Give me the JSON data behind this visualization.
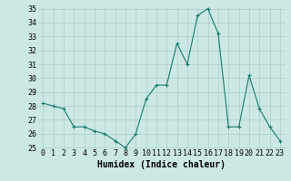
{
  "x": [
    0,
    1,
    2,
    3,
    4,
    5,
    6,
    7,
    8,
    9,
    10,
    11,
    12,
    13,
    14,
    15,
    16,
    17,
    18,
    19,
    20,
    21,
    22,
    23
  ],
  "y": [
    28.2,
    28.0,
    27.8,
    26.5,
    26.5,
    26.2,
    26.0,
    25.5,
    25.0,
    26.0,
    28.5,
    29.5,
    29.5,
    32.5,
    31.0,
    34.5,
    35.0,
    33.2,
    26.5,
    26.5,
    30.2,
    27.8,
    26.5,
    25.5
  ],
  "xlabel": "Humidex (Indice chaleur)",
  "ylim": [
    25,
    35
  ],
  "xlim": [
    -0.5,
    23.5
  ],
  "yticks": [
    25,
    26,
    27,
    28,
    29,
    30,
    31,
    32,
    33,
    34,
    35
  ],
  "xticks": [
    0,
    1,
    2,
    3,
    4,
    5,
    6,
    7,
    8,
    9,
    10,
    11,
    12,
    13,
    14,
    15,
    16,
    17,
    18,
    19,
    20,
    21,
    22,
    23
  ],
  "xtick_labels": [
    "0",
    "1",
    "2",
    "3",
    "4",
    "5",
    "6",
    "7",
    "8",
    "9",
    "10",
    "11",
    "12",
    "13",
    "14",
    "15",
    "16",
    "17",
    "18",
    "19",
    "20",
    "21",
    "22",
    "23"
  ],
  "line_color": "#1a7a6e",
  "marker": "+",
  "bg_color": "#cce8e4",
  "grid_color": "#a8cfc9",
  "xlabel_fontsize": 7,
  "tick_fontsize": 6,
  "ylabel_fontsize": 6
}
